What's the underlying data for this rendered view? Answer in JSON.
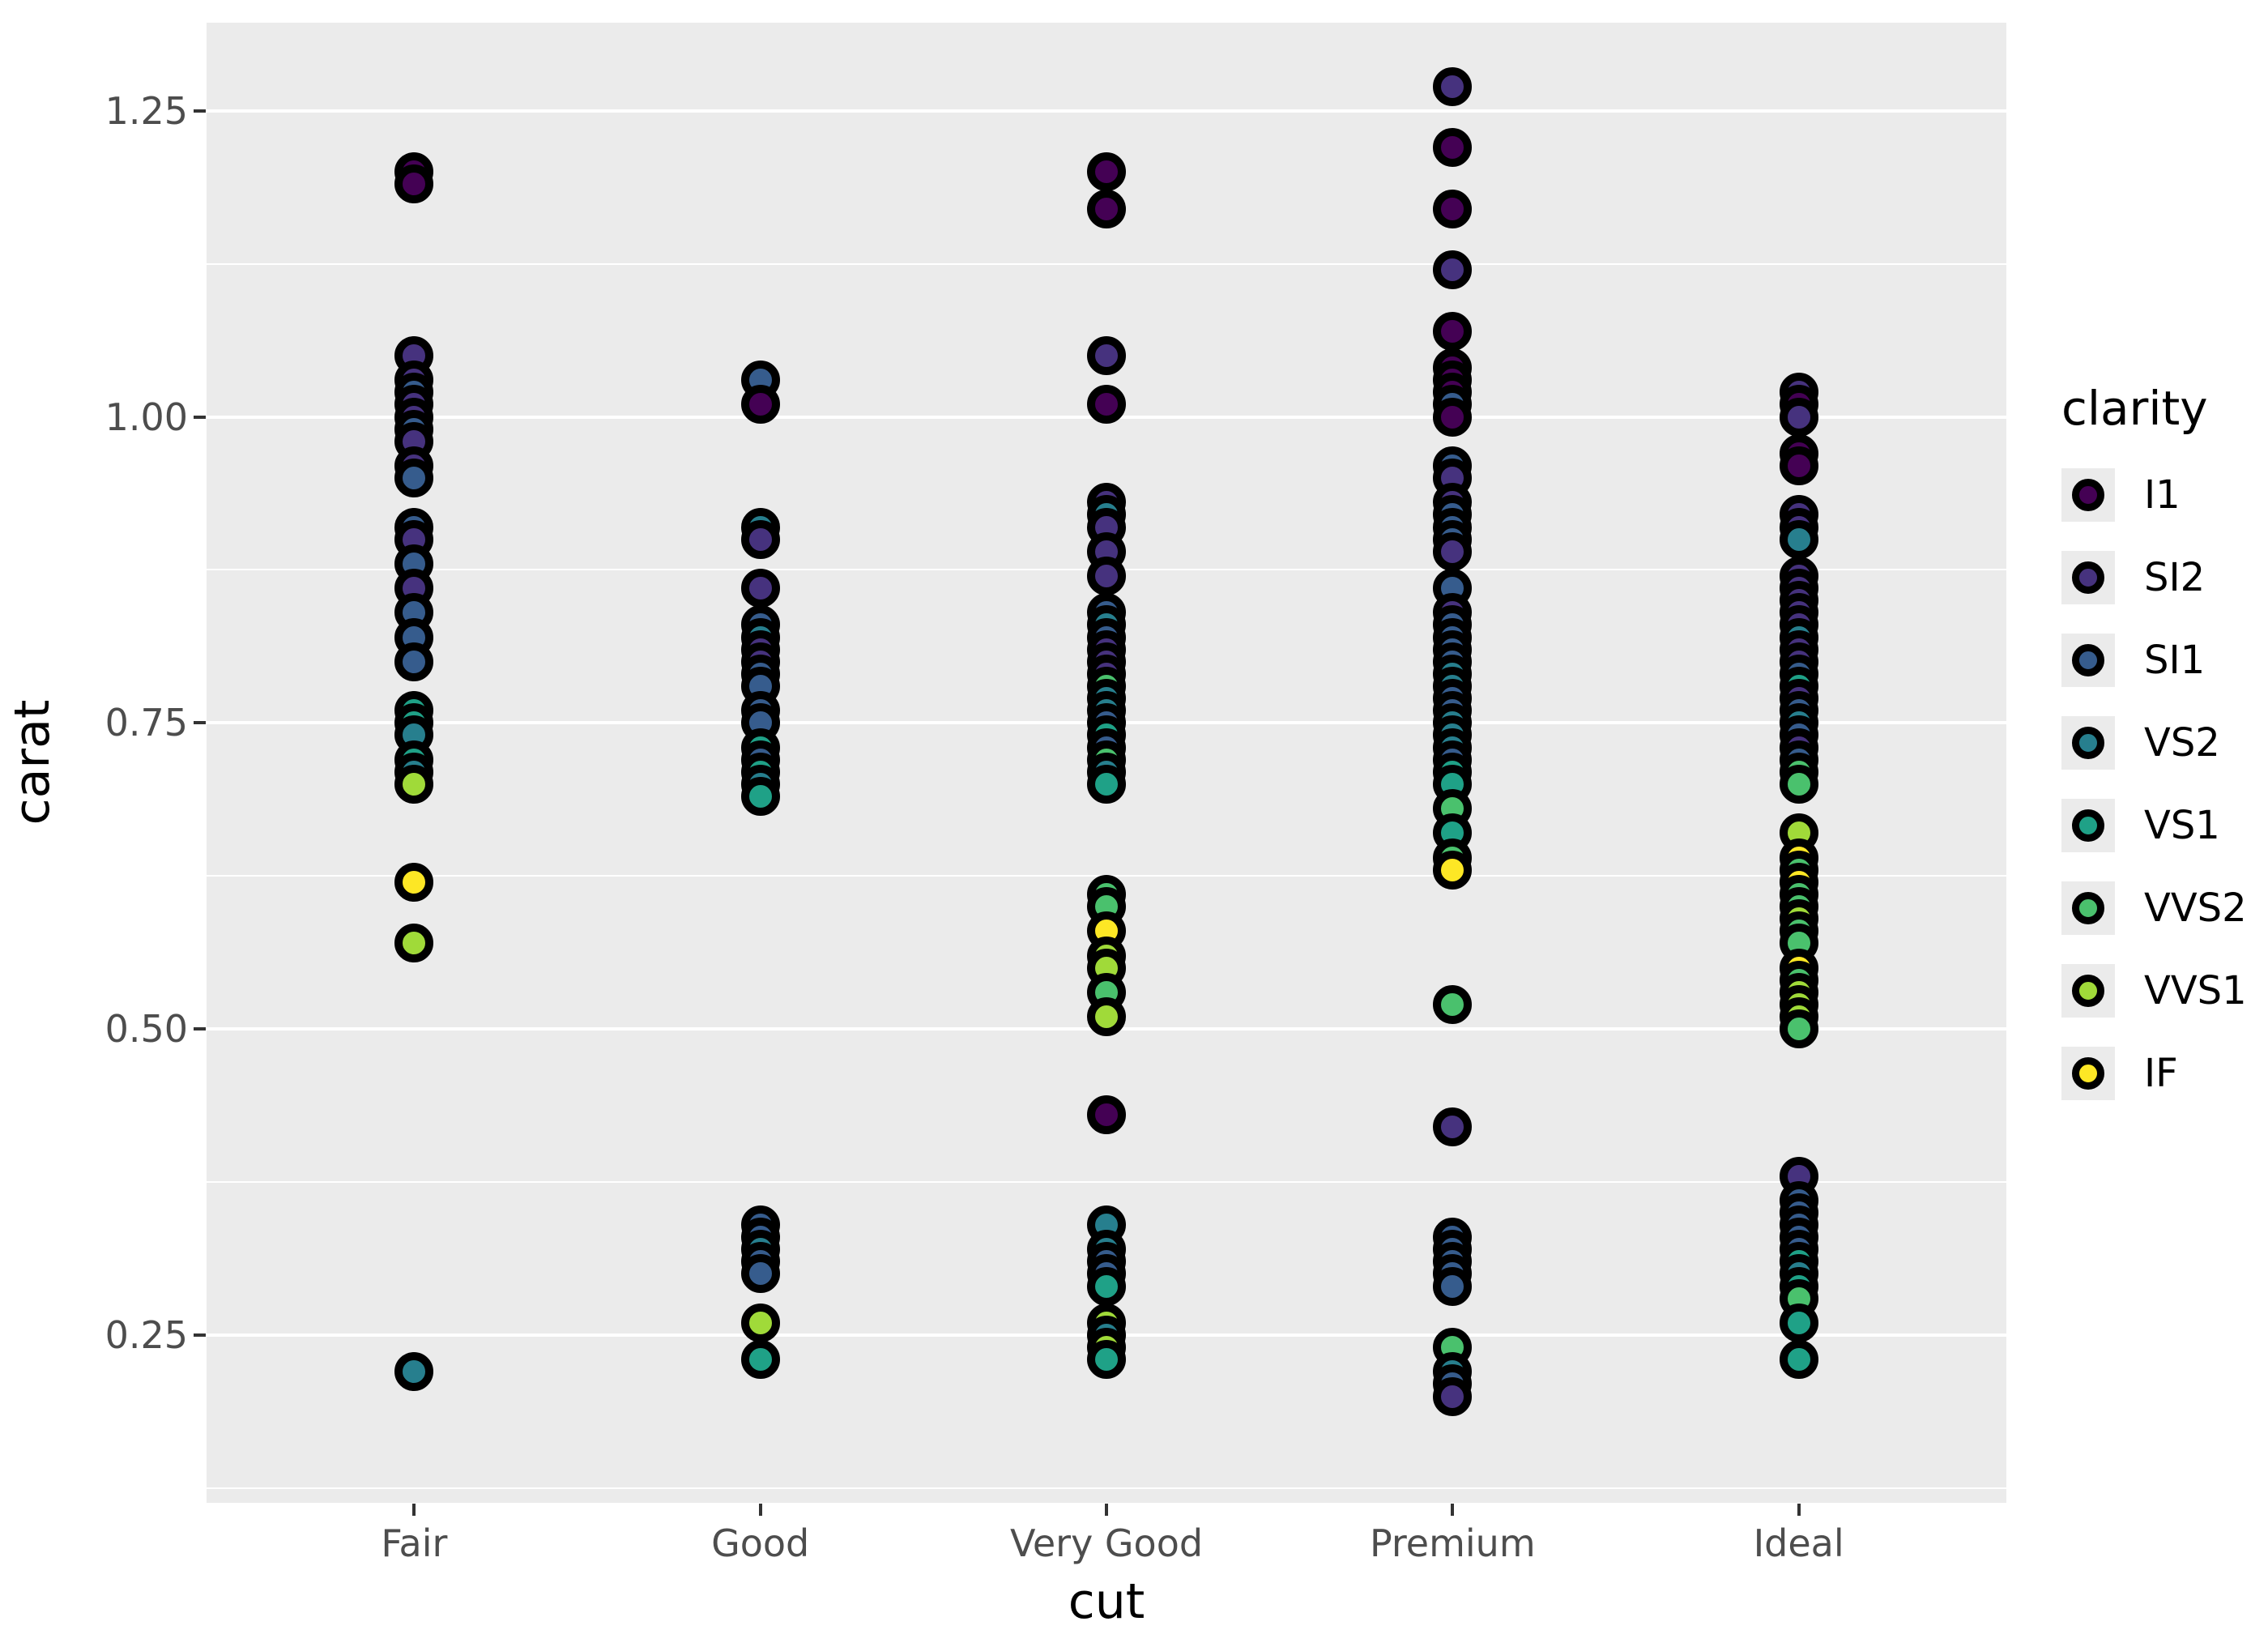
{
  "chart_data": {
    "type": "scatter",
    "title": "",
    "xlabel": "cut",
    "ylabel": "carat",
    "categories": [
      "Fair",
      "Good",
      "Very Good",
      "Premium",
      "Ideal"
    ],
    "yticks": [
      {
        "value": 0.25,
        "label": "0.25"
      },
      {
        "value": 0.5,
        "label": "0.50"
      },
      {
        "value": 0.75,
        "label": "0.75"
      },
      {
        "value": 1.0,
        "label": "1.00"
      },
      {
        "value": 1.25,
        "label": "1.25"
      }
    ],
    "ylim": [
      0.113,
      1.322
    ],
    "grid": "major-minor",
    "legend_position": "right",
    "legend": {
      "title": "clarity",
      "entries": [
        {
          "label": "I1",
          "color": "#440154"
        },
        {
          "label": "SI2",
          "color": "#46327E"
        },
        {
          "label": "SI1",
          "color": "#365C8D"
        },
        {
          "label": "VS2",
          "color": "#277F8E"
        },
        {
          "label": "VS1",
          "color": "#1FA187"
        },
        {
          "label": "VVS2",
          "color": "#4AC16D"
        },
        {
          "label": "VVS1",
          "color": "#A0DA39"
        },
        {
          "label": "IF",
          "color": "#FDE725"
        }
      ]
    },
    "panel_background": "#EBEBEB",
    "gridline_color": "#FFFFFF",
    "points": {
      "Fair": [
        [
          1.2,
          "I1"
        ],
        [
          1.19,
          "I1"
        ],
        [
          1.05,
          "SI2"
        ],
        [
          1.03,
          "SI2"
        ],
        [
          1.02,
          "SI1"
        ],
        [
          1.01,
          "SI2"
        ],
        [
          1.0,
          "SI2"
        ],
        [
          0.99,
          "SI1"
        ],
        [
          0.98,
          "SI2"
        ],
        [
          0.96,
          "SI2"
        ],
        [
          0.95,
          "SI1"
        ],
        [
          0.91,
          "SI1"
        ],
        [
          0.9,
          "SI2"
        ],
        [
          0.88,
          "SI1"
        ],
        [
          0.86,
          "SI2"
        ],
        [
          0.84,
          "SI1"
        ],
        [
          0.82,
          "SI1"
        ],
        [
          0.8,
          "SI1"
        ],
        [
          0.76,
          "VS1"
        ],
        [
          0.75,
          "VS1"
        ],
        [
          0.74,
          "VS2"
        ],
        [
          0.72,
          "VS1"
        ],
        [
          0.71,
          "VS2"
        ],
        [
          0.7,
          "VVS1"
        ],
        [
          0.62,
          "IF"
        ],
        [
          0.57,
          "VVS1"
        ],
        [
          0.22,
          "VS2"
        ]
      ],
      "Good": [
        [
          1.03,
          "SI1"
        ],
        [
          1.01,
          "I1"
        ],
        [
          0.91,
          "VS2"
        ],
        [
          0.9,
          "SI2"
        ],
        [
          0.86,
          "SI2"
        ],
        [
          0.83,
          "SI1"
        ],
        [
          0.82,
          "VS2"
        ],
        [
          0.81,
          "SI2"
        ],
        [
          0.8,
          "SI2"
        ],
        [
          0.79,
          "SI1"
        ],
        [
          0.78,
          "SI1"
        ],
        [
          0.76,
          "SI1"
        ],
        [
          0.75,
          "SI1"
        ],
        [
          0.73,
          "VS1"
        ],
        [
          0.72,
          "SI1"
        ],
        [
          0.71,
          "VS1"
        ],
        [
          0.7,
          "VS2"
        ],
        [
          0.69,
          "VS1"
        ],
        [
          0.34,
          "SI1"
        ],
        [
          0.33,
          "SI1"
        ],
        [
          0.32,
          "VS2"
        ],
        [
          0.31,
          "SI1"
        ],
        [
          0.3,
          "SI1"
        ],
        [
          0.26,
          "VVS1"
        ],
        [
          0.23,
          "VS1"
        ]
      ],
      "Very Good": [
        [
          1.2,
          "I1"
        ],
        [
          1.17,
          "I1"
        ],
        [
          1.05,
          "SI2"
        ],
        [
          1.01,
          "I1"
        ],
        [
          0.93,
          "SI2"
        ],
        [
          0.92,
          "VS2"
        ],
        [
          0.91,
          "SI2"
        ],
        [
          0.89,
          "SI2"
        ],
        [
          0.87,
          "SI2"
        ],
        [
          0.84,
          "SI1"
        ],
        [
          0.83,
          "VS2"
        ],
        [
          0.82,
          "SI1"
        ],
        [
          0.81,
          "SI2"
        ],
        [
          0.8,
          "SI2"
        ],
        [
          0.79,
          "SI2"
        ],
        [
          0.78,
          "VVS2"
        ],
        [
          0.77,
          "VS2"
        ],
        [
          0.76,
          "VS2"
        ],
        [
          0.75,
          "SI1"
        ],
        [
          0.74,
          "VS1"
        ],
        [
          0.73,
          "SI1"
        ],
        [
          0.72,
          "VVS2"
        ],
        [
          0.71,
          "VS2"
        ],
        [
          0.7,
          "VS1"
        ],
        [
          0.61,
          "VVS2"
        ],
        [
          0.6,
          "VVS2"
        ],
        [
          0.58,
          "IF"
        ],
        [
          0.56,
          "VVS1"
        ],
        [
          0.55,
          "VVS1"
        ],
        [
          0.53,
          "VVS2"
        ],
        [
          0.51,
          "VVS1"
        ],
        [
          0.43,
          "I1"
        ],
        [
          0.34,
          "VS2"
        ],
        [
          0.32,
          "VS2"
        ],
        [
          0.31,
          "SI1"
        ],
        [
          0.3,
          "SI1"
        ],
        [
          0.29,
          "VS1"
        ],
        [
          0.26,
          "VVS1"
        ],
        [
          0.25,
          "VS2"
        ],
        [
          0.24,
          "VVS1"
        ],
        [
          0.23,
          "VS1"
        ]
      ],
      "Premium": [
        [
          1.27,
          "SI2"
        ],
        [
          1.22,
          "I1"
        ],
        [
          1.17,
          "I1"
        ],
        [
          1.12,
          "SI2"
        ],
        [
          1.07,
          "I1"
        ],
        [
          1.04,
          "I1"
        ],
        [
          1.03,
          "I1"
        ],
        [
          1.02,
          "I1"
        ],
        [
          1.01,
          "SI1"
        ],
        [
          1.0,
          "I1"
        ],
        [
          0.96,
          "SI1"
        ],
        [
          0.95,
          "SI2"
        ],
        [
          0.93,
          "SI2"
        ],
        [
          0.92,
          "SI1"
        ],
        [
          0.91,
          "SI1"
        ],
        [
          0.9,
          "SI1"
        ],
        [
          0.89,
          "SI2"
        ],
        [
          0.86,
          "SI1"
        ],
        [
          0.84,
          "SI2"
        ],
        [
          0.83,
          "SI1"
        ],
        [
          0.82,
          "SI1"
        ],
        [
          0.81,
          "SI1"
        ],
        [
          0.8,
          "SI1"
        ],
        [
          0.79,
          "VS2"
        ],
        [
          0.78,
          "VS2"
        ],
        [
          0.77,
          "SI1"
        ],
        [
          0.76,
          "SI1"
        ],
        [
          0.75,
          "VS2"
        ],
        [
          0.74,
          "VS2"
        ],
        [
          0.73,
          "VS2"
        ],
        [
          0.72,
          "SI1"
        ],
        [
          0.71,
          "VS1"
        ],
        [
          0.7,
          "VS1"
        ],
        [
          0.68,
          "VVS2"
        ],
        [
          0.66,
          "VS1"
        ],
        [
          0.64,
          "VVS2"
        ],
        [
          0.63,
          "IF"
        ],
        [
          0.52,
          "VVS2"
        ],
        [
          0.42,
          "SI2"
        ],
        [
          0.33,
          "SI1"
        ],
        [
          0.32,
          "SI1"
        ],
        [
          0.31,
          "SI1"
        ],
        [
          0.3,
          "SI1"
        ],
        [
          0.29,
          "SI1"
        ],
        [
          0.24,
          "VVS2"
        ],
        [
          0.22,
          "VS2"
        ],
        [
          0.21,
          "SI1"
        ],
        [
          0.2,
          "SI2"
        ]
      ],
      "Ideal": [
        [
          1.02,
          "SI2"
        ],
        [
          1.01,
          "I1"
        ],
        [
          1.0,
          "SI2"
        ],
        [
          0.97,
          "I1"
        ],
        [
          0.96,
          "I1"
        ],
        [
          0.92,
          "SI2"
        ],
        [
          0.91,
          "SI2"
        ],
        [
          0.9,
          "VS2"
        ],
        [
          0.87,
          "SI2"
        ],
        [
          0.86,
          "SI2"
        ],
        [
          0.85,
          "SI2"
        ],
        [
          0.84,
          "SI2"
        ],
        [
          0.83,
          "SI2"
        ],
        [
          0.82,
          "VS2"
        ],
        [
          0.81,
          "SI2"
        ],
        [
          0.8,
          "SI2"
        ],
        [
          0.79,
          "SI1"
        ],
        [
          0.78,
          "VS1"
        ],
        [
          0.77,
          "SI2"
        ],
        [
          0.76,
          "SI1"
        ],
        [
          0.75,
          "VS2"
        ],
        [
          0.74,
          "SI1"
        ],
        [
          0.73,
          "SI2"
        ],
        [
          0.72,
          "SI1"
        ],
        [
          0.71,
          "VVS2"
        ],
        [
          0.7,
          "VVS2"
        ],
        [
          0.66,
          "VVS1"
        ],
        [
          0.64,
          "IF"
        ],
        [
          0.63,
          "VVS2"
        ],
        [
          0.62,
          "IF"
        ],
        [
          0.61,
          "VVS2"
        ],
        [
          0.6,
          "VVS2"
        ],
        [
          0.59,
          "VVS1"
        ],
        [
          0.58,
          "VVS2"
        ],
        [
          0.57,
          "VVS2"
        ],
        [
          0.55,
          "IF"
        ],
        [
          0.54,
          "VVS2"
        ],
        [
          0.53,
          "VVS1"
        ],
        [
          0.52,
          "VVS1"
        ],
        [
          0.51,
          "VVS1"
        ],
        [
          0.5,
          "VVS2"
        ],
        [
          0.38,
          "SI2"
        ],
        [
          0.36,
          "SI1"
        ],
        [
          0.35,
          "SI1"
        ],
        [
          0.34,
          "SI1"
        ],
        [
          0.33,
          "SI1"
        ],
        [
          0.32,
          "SI1"
        ],
        [
          0.31,
          "VS1"
        ],
        [
          0.3,
          "VS2"
        ],
        [
          0.29,
          "VS1"
        ],
        [
          0.28,
          "VVS2"
        ],
        [
          0.26,
          "VS1"
        ],
        [
          0.23,
          "VS1"
        ]
      ]
    }
  }
}
